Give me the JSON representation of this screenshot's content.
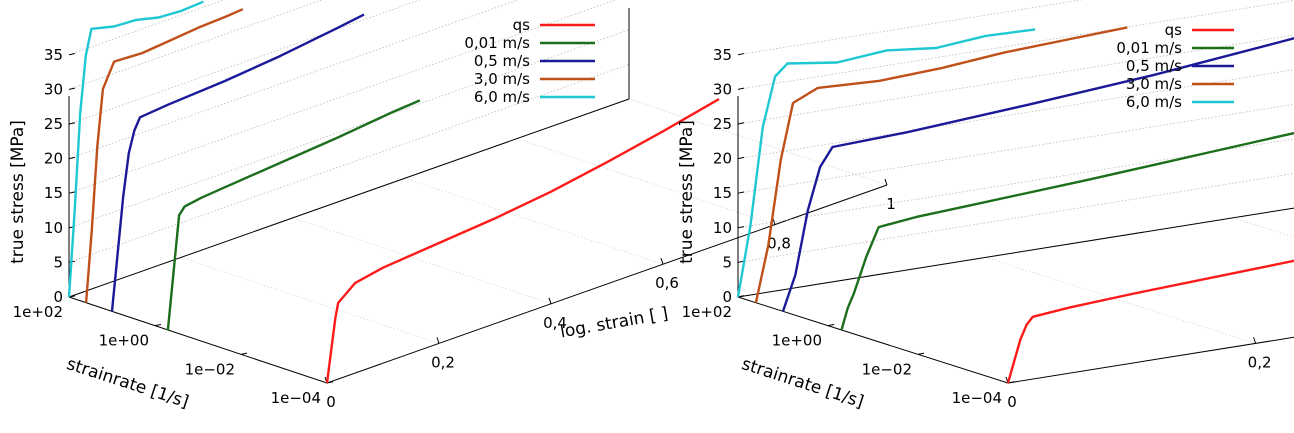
{
  "chart_data": [
    {
      "type": "line",
      "title": "",
      "xlabel": "log. strain [ ]",
      "ylabel": "strainrate [1/s]",
      "zlabel": "true stress [MPa]",
      "x_ticks": [
        "0",
        "0,2",
        "0,4",
        "0,6",
        "0,8",
        "1"
      ],
      "y_ticks": [
        "1e+02",
        "1e+00",
        "1e−02",
        "1e−04"
      ],
      "z_ticks": [
        "0",
        "5",
        "10",
        "15",
        "20",
        "25",
        "30",
        "35"
      ],
      "xlim": [
        0,
        1
      ],
      "ylim_log10": [
        -4,
        2
      ],
      "zlim": [
        0,
        38
      ],
      "legend_position": "top-right",
      "series": [
        {
          "name": "qs",
          "color": "#ff1a1a",
          "strainrate": 0.0001,
          "points": [
            [
              0,
              0
            ],
            [
              0.005,
              3
            ],
            [
              0.01,
              6
            ],
            [
              0.015,
              9
            ],
            [
              0.02,
              11
            ],
            [
              0.05,
              13
            ],
            [
              0.1,
              13.8
            ],
            [
              0.2,
              14.5
            ],
            [
              0.3,
              15.2
            ],
            [
              0.4,
              16.2
            ],
            [
              0.5,
              17.6
            ],
            [
              0.6,
              19.2
            ],
            [
              0.7,
              21
            ]
          ]
        },
        {
          "name": "0,01 m/s",
          "color": "#1b6e1b",
          "strainrate": 0.5,
          "points": [
            [
              0,
              0
            ],
            [
              0.01,
              8
            ],
            [
              0.02,
              16
            ],
            [
              0.03,
              17
            ],
            [
              0.06,
              17.4
            ],
            [
              0.1,
              17.7
            ],
            [
              0.2,
              18.4
            ],
            [
              0.3,
              19.1
            ],
            [
              0.4,
              20
            ],
            [
              0.45,
              20.3
            ]
          ]
        },
        {
          "name": "0,5 m/s",
          "color": "#1a1a99",
          "strainrate": 10,
          "points": [
            [
              0,
              0
            ],
            [
              0.01,
              8
            ],
            [
              0.02,
              16
            ],
            [
              0.03,
              22
            ],
            [
              0.04,
              25
            ],
            [
              0.05,
              26.6
            ],
            [
              0.1,
              27
            ],
            [
              0.2,
              27.5
            ],
            [
              0.3,
              28.3
            ],
            [
              0.4,
              29.4
            ],
            [
              0.45,
              30
            ]
          ]
        },
        {
          "name": "3,0 m/s",
          "color": "#c0501a",
          "strainrate": 40,
          "points": [
            [
              0,
              0
            ],
            [
              0.01,
              10
            ],
            [
              0.02,
              22
            ],
            [
              0.03,
              30
            ],
            [
              0.05,
              33.4
            ],
            [
              0.1,
              33.2
            ],
            [
              0.15,
              33.6
            ],
            [
              0.2,
              34
            ],
            [
              0.25,
              34.2
            ],
            [
              0.28,
              34.4
            ]
          ]
        },
        {
          "name": "6,0 m/s",
          "color": "#1ec8d2",
          "strainrate": 100,
          "points": [
            [
              0,
              0
            ],
            [
              0.01,
              12
            ],
            [
              0.02,
              26
            ],
            [
              0.03,
              34
            ],
            [
              0.04,
              37.6
            ],
            [
              0.08,
              36.8
            ],
            [
              0.12,
              36.6
            ],
            [
              0.16,
              35.8
            ],
            [
              0.2,
              35.6
            ],
            [
              0.24,
              35.8
            ]
          ]
        }
      ]
    },
    {
      "type": "line",
      "title": "",
      "xlabel": "log. strain [ ]",
      "ylabel": "strainrate [1/s]",
      "zlabel": "true stress [MPa]",
      "x_ticks": [
        "0",
        "0,2",
        "0,4",
        "0,6",
        "0,8",
        "1"
      ],
      "y_ticks": [
        "1e+02",
        "1e+00",
        "1e−02",
        "1e−04"
      ],
      "z_ticks": [
        "0",
        "5",
        "10",
        "15",
        "20",
        "25",
        "30",
        "35"
      ],
      "xlim": [
        0,
        1
      ],
      "ylim_log10": [
        -4,
        2
      ],
      "zlim": [
        0,
        38
      ],
      "legend_position": "top-right",
      "series": [
        {
          "name": "qs",
          "color": "#ff1a1a",
          "strainrate": 0.0001,
          "points": [
            [
              0,
              0
            ],
            [
              0.005,
              3
            ],
            [
              0.01,
              6
            ],
            [
              0.015,
              8
            ],
            [
              0.02,
              9
            ],
            [
              0.05,
              9.5
            ],
            [
              0.1,
              10
            ],
            [
              0.2,
              10.8
            ],
            [
              0.3,
              11.6
            ],
            [
              0.4,
              12.6
            ],
            [
              0.5,
              13.8
            ],
            [
              0.6,
              15.2
            ],
            [
              0.7,
              16.6
            ]
          ]
        },
        {
          "name": "0,01 m/s",
          "color": "#1b6e1b",
          "strainrate": 0.5,
          "points": [
            [
              0,
              0
            ],
            [
              0.005,
              3
            ],
            [
              0.01,
              5
            ],
            [
              0.02,
              10
            ],
            [
              0.03,
              14
            ],
            [
              0.06,
              14.6
            ],
            [
              0.1,
              15
            ],
            [
              0.2,
              16
            ],
            [
              0.3,
              17.2
            ],
            [
              0.4,
              18.4
            ],
            [
              0.5,
              19.8
            ],
            [
              0.6,
              21.2
            ],
            [
              0.65,
              21.8
            ]
          ]
        },
        {
          "name": "0,5 m/s",
          "color": "#1a1a99",
          "strainrate": 10,
          "points": [
            [
              0,
              0
            ],
            [
              0.01,
              5
            ],
            [
              0.02,
              14
            ],
            [
              0.03,
              20
            ],
            [
              0.04,
              22.6
            ],
            [
              0.1,
              23
            ],
            [
              0.2,
              24.2
            ],
            [
              0.3,
              25.6
            ],
            [
              0.4,
              27.4
            ],
            [
              0.45,
              28.4
            ]
          ]
        },
        {
          "name": "3,0 m/s",
          "color": "#c0501a",
          "strainrate": 40,
          "points": [
            [
              0,
              0
            ],
            [
              0.01,
              8
            ],
            [
              0.02,
              20
            ],
            [
              0.03,
              28
            ],
            [
              0.05,
              29.6
            ],
            [
              0.1,
              29.2
            ],
            [
              0.15,
              29.6
            ],
            [
              0.2,
              30.4
            ],
            [
              0.25,
              30.8
            ],
            [
              0.3,
              31.2
            ]
          ]
        },
        {
          "name": "6,0 m/s",
          "color": "#1ec8d2",
          "strainrate": 100,
          "points": [
            [
              0,
              0
            ],
            [
              0.01,
              10
            ],
            [
              0.02,
              24
            ],
            [
              0.03,
              31
            ],
            [
              0.04,
              32.6
            ],
            [
              0.08,
              31.6
            ],
            [
              0.12,
              32.2
            ],
            [
              0.16,
              31.4
            ],
            [
              0.2,
              32
            ],
            [
              0.24,
              31.8
            ]
          ]
        }
      ]
    }
  ]
}
